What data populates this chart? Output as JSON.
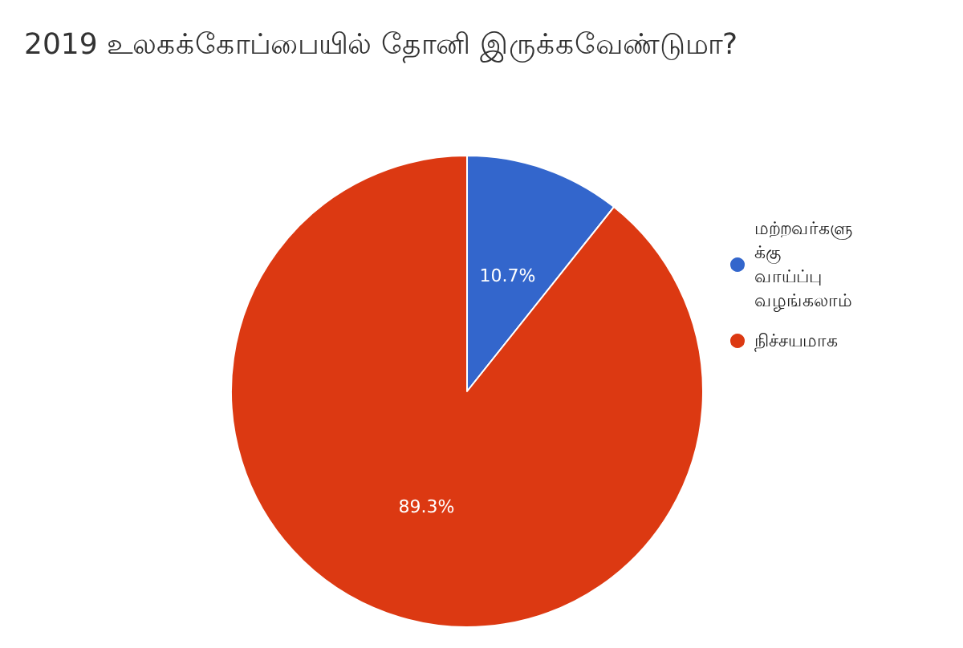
{
  "chart_data": {
    "type": "pie",
    "title": "2019 உலகக்கோப்பையில் தோனி இருக்கவேண்டுமா?",
    "categories": [
      "மற்றவர்களுக்கு வாய்ப்பு வழங்கலாம்",
      "நிச்சயமாக"
    ],
    "values": [
      10.7,
      89.3
    ],
    "colors": [
      "#3366cc",
      "#dc3912"
    ],
    "value_labels": [
      "10.7%",
      "89.3%"
    ],
    "legend": "right"
  }
}
